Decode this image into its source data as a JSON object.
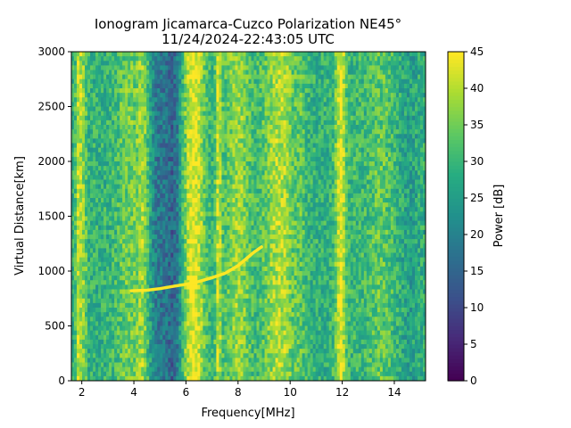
{
  "chart_data": {
    "type": "heatmap",
    "title": "Ionogram Jicamarca-Cuzco Polarization NE45°",
    "subtitle": "11/24/2024-22:43:05 UTC",
    "xlabel": "Frequency[MHz]",
    "ylabel": "Virtual Distance[km]",
    "xlim": [
      1.6,
      15.2
    ],
    "ylim": [
      0,
      3000
    ],
    "xticks": [
      2,
      4,
      6,
      8,
      10,
      12,
      14
    ],
    "yticks": [
      0,
      500,
      1000,
      1500,
      2000,
      2500,
      3000
    ],
    "colorbar": {
      "label": "Power [dB]",
      "range": [
        0,
        45
      ],
      "ticks": [
        0,
        5,
        10,
        15,
        20,
        25,
        30,
        35,
        40,
        45
      ],
      "colormap": "viridis"
    },
    "bands": [
      {
        "f": 1.9,
        "width": 0.12,
        "power": 42
      },
      {
        "f": 2.1,
        "width": 0.08,
        "power": 38
      },
      {
        "f": 3.8,
        "width": 0.5,
        "power": 35
      },
      {
        "f": 4.35,
        "width": 0.25,
        "power": 40
      },
      {
        "f": 5.0,
        "width": 0.4,
        "power": 18
      },
      {
        "f": 5.5,
        "width": 0.35,
        "power": 14
      },
      {
        "f": 6.3,
        "width": 0.4,
        "power": 44
      },
      {
        "f": 7.25,
        "width": 0.12,
        "power": 42
      },
      {
        "f": 8.0,
        "width": 0.5,
        "power": 38
      },
      {
        "f": 8.9,
        "width": 0.3,
        "power": 30
      },
      {
        "f": 9.6,
        "width": 0.6,
        "power": 40
      },
      {
        "f": 10.3,
        "width": 0.25,
        "power": 34
      },
      {
        "f": 11.95,
        "width": 0.2,
        "power": 45
      },
      {
        "f": 12.6,
        "width": 0.4,
        "power": 30
      },
      {
        "f": 13.5,
        "width": 0.5,
        "power": 34
      },
      {
        "f": 14.6,
        "width": 0.4,
        "power": 26
      }
    ],
    "trace": {
      "f": [
        3.9,
        4.5,
        5.0,
        5.5,
        6.0,
        6.5,
        7.0,
        7.5,
        8.0,
        8.3,
        8.6,
        8.9
      ],
      "km": [
        820,
        825,
        840,
        860,
        880,
        905,
        940,
        980,
        1050,
        1110,
        1170,
        1220
      ],
      "power": 45
    }
  }
}
